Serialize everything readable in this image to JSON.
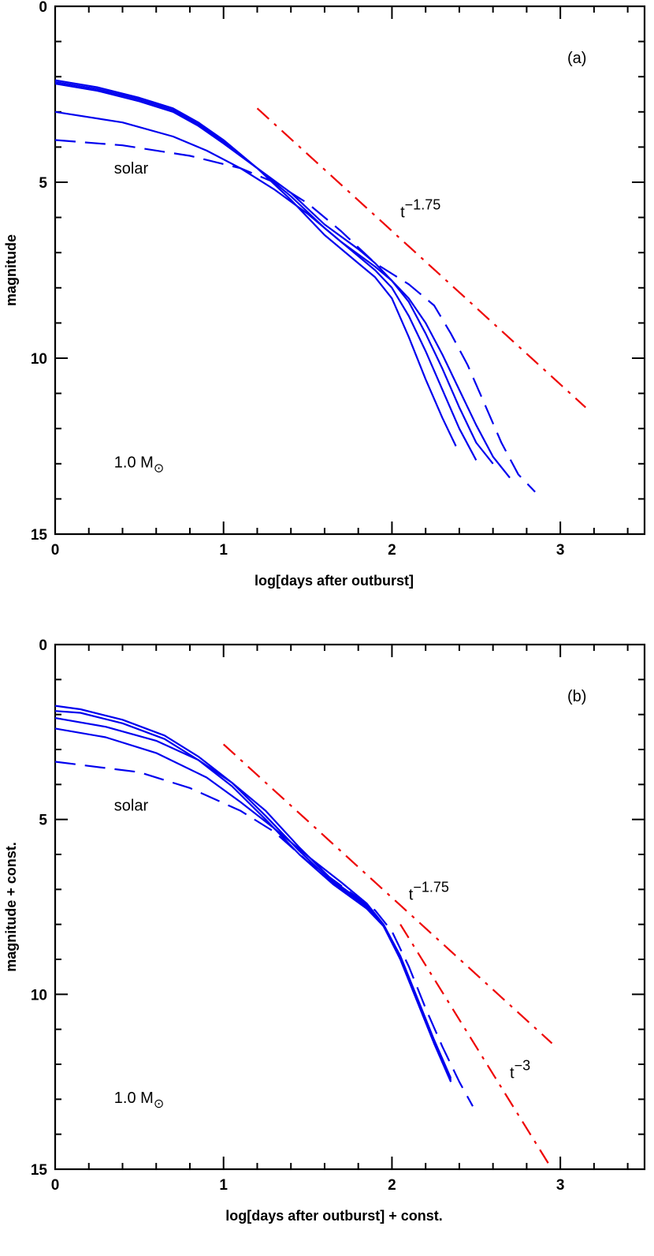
{
  "chart_data": [
    {
      "type": "line",
      "panel_label": "(a)",
      "xlabel": "log[days after outburst]",
      "ylabel": "magnitude",
      "xlim": [
        0,
        3.5
      ],
      "ylim": [
        0,
        15
      ],
      "y_inverted": true,
      "x_ticks": [
        0,
        1,
        2,
        3
      ],
      "y_ticks": [
        0,
        5,
        10,
        15
      ],
      "grid": false,
      "colors": {
        "model": "#0000ee",
        "power_law": "#ee0000"
      },
      "annotations": [
        {
          "text": "solar",
          "x": 0.35,
          "y": 4.75
        },
        {
          "text": "1.0 M",
          "x": 0.35,
          "y": 13.1,
          "sub": "⊙"
        }
      ],
      "power_law_labels": [
        {
          "base": "t",
          "exp": "−1.75",
          "x": 2.05,
          "y": 6.0
        }
      ],
      "series": [
        {
          "style": "solid",
          "color": "#0000ee",
          "x": [
            0,
            0.25,
            0.5,
            0.7,
            0.85,
            1.0,
            1.2,
            1.4,
            1.6,
            1.8,
            1.9,
            2.0,
            2.1,
            2.2,
            2.3,
            2.38
          ],
          "y": [
            2.1,
            2.3,
            2.6,
            2.9,
            3.3,
            3.8,
            4.6,
            5.5,
            6.5,
            7.3,
            7.7,
            8.3,
            9.4,
            10.6,
            11.7,
            12.5
          ]
        },
        {
          "style": "solid",
          "color": "#0000ee",
          "x": [
            0,
            0.25,
            0.5,
            0.7,
            0.85,
            1.0,
            1.2,
            1.4,
            1.6,
            1.8,
            1.9,
            2.0,
            2.1,
            2.2,
            2.3,
            2.4,
            2.5
          ],
          "y": [
            2.15,
            2.35,
            2.65,
            2.95,
            3.35,
            3.85,
            4.6,
            5.4,
            6.3,
            7.1,
            7.5,
            8.0,
            8.8,
            9.8,
            10.9,
            12.0,
            12.9
          ]
        },
        {
          "style": "solid",
          "color": "#0000ee",
          "x": [
            0,
            0.25,
            0.5,
            0.7,
            0.85,
            1.0,
            1.2,
            1.4,
            1.6,
            1.8,
            1.9,
            2.0,
            2.1,
            2.2,
            2.3,
            2.4,
            2.5,
            2.6
          ],
          "y": [
            2.2,
            2.4,
            2.7,
            3.0,
            3.4,
            3.9,
            4.6,
            5.3,
            6.2,
            6.9,
            7.3,
            7.8,
            8.4,
            9.3,
            10.3,
            11.4,
            12.4,
            13.0
          ]
        },
        {
          "style": "solid",
          "color": "#0000ee",
          "x": [
            0,
            0.4,
            0.7,
            0.9,
            1.1,
            1.3,
            1.5,
            1.7,
            1.9,
            2.0,
            2.1,
            2.2,
            2.3,
            2.4,
            2.5,
            2.6,
            2.7
          ],
          "y": [
            3.0,
            3.3,
            3.7,
            4.1,
            4.6,
            5.2,
            5.9,
            6.7,
            7.4,
            7.8,
            8.3,
            9.0,
            9.9,
            10.9,
            11.9,
            12.8,
            13.4
          ]
        },
        {
          "style": "dashed",
          "color": "#0000ee",
          "x": [
            0,
            0.4,
            0.8,
            1.1,
            1.3,
            1.5,
            1.7,
            1.9,
            2.1,
            2.25,
            2.35,
            2.45,
            2.55,
            2.65,
            2.75,
            2.85
          ],
          "y": [
            3.8,
            3.95,
            4.25,
            4.6,
            5.0,
            5.6,
            6.4,
            7.3,
            7.9,
            8.5,
            9.3,
            10.2,
            11.3,
            12.4,
            13.3,
            13.8
          ]
        },
        {
          "style": "dash-dot",
          "color": "#ee0000",
          "x": [
            1.2,
            3.15
          ],
          "y": [
            2.9,
            11.4
          ]
        }
      ]
    },
    {
      "type": "line",
      "panel_label": "(b)",
      "xlabel": "log[days after outburst] + const.",
      "ylabel": "magnitude + const.",
      "xlim": [
        0,
        3.5
      ],
      "ylim": [
        0,
        15
      ],
      "y_inverted": true,
      "x_ticks": [
        0,
        1,
        2,
        3
      ],
      "y_ticks": [
        0,
        5,
        10,
        15
      ],
      "grid": false,
      "colors": {
        "model": "#0000ee",
        "power_law": "#ee0000"
      },
      "annotations": [
        {
          "text": "solar",
          "x": 0.35,
          "y": 4.75
        },
        {
          "text": "1.0 M",
          "x": 0.35,
          "y": 13.1,
          "sub": "⊙"
        }
      ],
      "power_law_labels": [
        {
          "base": "t",
          "exp": "−1.75",
          "x": 2.1,
          "y": 7.3
        },
        {
          "base": "t",
          "exp": "−3",
          "x": 2.7,
          "y": 12.4
        }
      ],
      "series": [
        {
          "style": "solid",
          "color": "#0000ee",
          "x": [
            0,
            0.15,
            0.4,
            0.65,
            0.85,
            1.05,
            1.25,
            1.45,
            1.65,
            1.85,
            1.95,
            2.05,
            2.15,
            2.25,
            2.35
          ],
          "y": [
            1.75,
            1.85,
            2.15,
            2.6,
            3.2,
            3.95,
            4.9,
            5.9,
            6.8,
            7.5,
            8.0,
            8.9,
            10.1,
            11.3,
            12.4
          ]
        },
        {
          "style": "solid",
          "color": "#0000ee",
          "x": [
            0,
            0.15,
            0.4,
            0.65,
            0.85,
            1.05,
            1.25,
            1.45,
            1.65,
            1.85,
            1.95,
            2.05,
            2.15,
            2.25,
            2.35
          ],
          "y": [
            1.9,
            1.95,
            2.25,
            2.7,
            3.3,
            4.05,
            5.0,
            6.0,
            6.85,
            7.55,
            8.05,
            8.95,
            10.15,
            11.35,
            12.45
          ]
        },
        {
          "style": "solid",
          "color": "#0000ee",
          "x": [
            0,
            0.3,
            0.6,
            0.85,
            1.05,
            1.25,
            1.45,
            1.65,
            1.85,
            1.95,
            2.05,
            2.15,
            2.25,
            2.35
          ],
          "y": [
            2.1,
            2.35,
            2.75,
            3.3,
            3.95,
            4.75,
            5.8,
            6.75,
            7.45,
            8.05,
            9.0,
            10.2,
            11.4,
            12.5
          ]
        },
        {
          "style": "solid",
          "color": "#0000ee",
          "x": [
            0,
            0.3,
            0.6,
            0.9,
            1.1,
            1.3,
            1.5,
            1.7,
            1.85,
            1.95,
            2.05,
            2.15,
            2.25,
            2.35
          ],
          "y": [
            2.4,
            2.65,
            3.1,
            3.8,
            4.5,
            5.25,
            6.05,
            6.8,
            7.4,
            8.0,
            9.0,
            10.2,
            11.4,
            12.5
          ]
        },
        {
          "style": "dashed",
          "color": "#0000ee",
          "x": [
            0,
            0.5,
            0.8,
            1.1,
            1.3,
            1.5,
            1.7,
            1.9,
            2.0,
            2.1,
            2.2,
            2.3,
            2.4,
            2.48
          ],
          "y": [
            3.35,
            3.65,
            4.1,
            4.75,
            5.35,
            6.2,
            6.9,
            7.6,
            8.2,
            9.2,
            10.4,
            11.5,
            12.5,
            13.2
          ]
        },
        {
          "style": "dash-dot",
          "color": "#ee0000",
          "x": [
            1.0,
            2.95
          ],
          "y": [
            2.85,
            11.4
          ]
        },
        {
          "style": "dash-dot",
          "color": "#ee0000",
          "x": [
            2.05,
            2.95
          ],
          "y": [
            8.0,
            15.0
          ]
        }
      ]
    }
  ]
}
